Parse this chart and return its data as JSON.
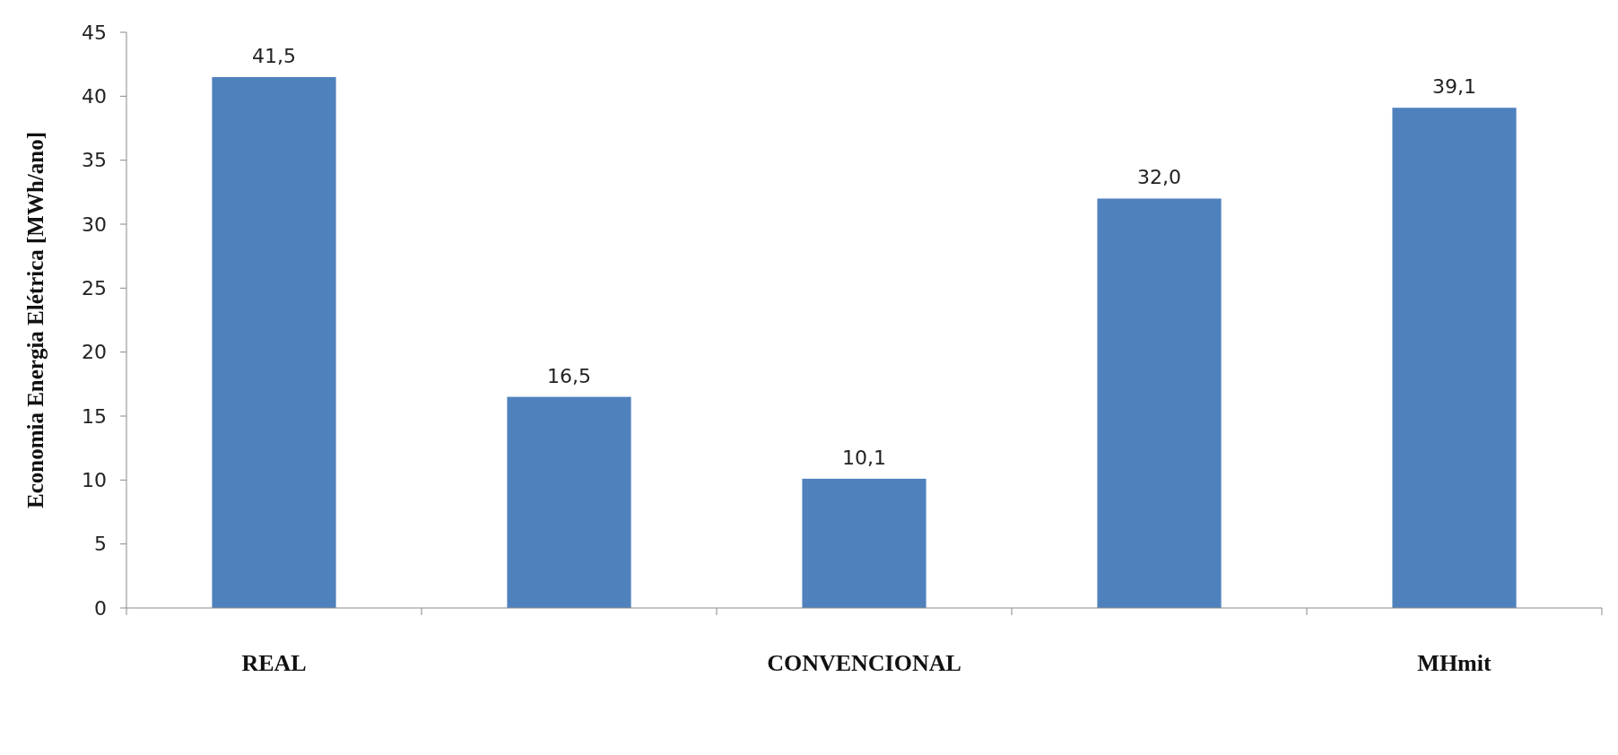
{
  "chart_data": {
    "type": "bar",
    "ylabel": "Economia Energia Elétrica [MWh/ano]",
    "categories": [
      "REAL",
      null,
      "CONVENCIONAL",
      null,
      "MHmit"
    ],
    "values": [
      41.5,
      16.5,
      10.1,
      32.0,
      39.1
    ],
    "value_labels": [
      "41,5",
      "16,5",
      "10,1",
      "32,0",
      "39,1"
    ],
    "color": "#4f81bd",
    "ylim": [
      0,
      45
    ],
    "yticks": [
      0,
      5,
      10,
      15,
      20,
      25,
      30,
      35,
      40,
      45
    ],
    "grid": false
  }
}
